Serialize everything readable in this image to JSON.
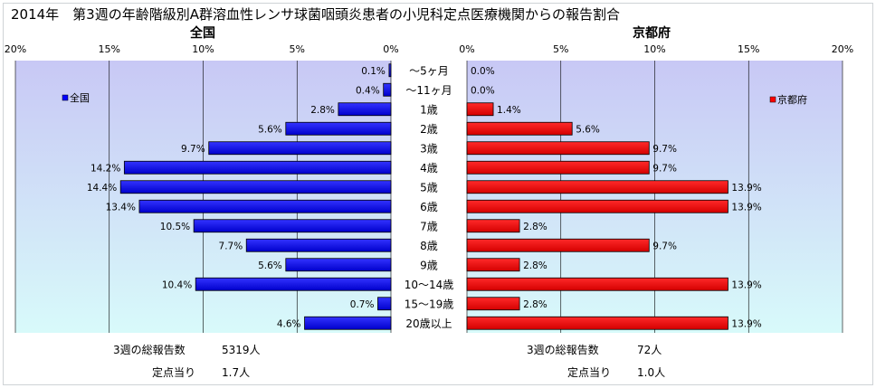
{
  "title": "2014年　第3週の年齢階級別A群溶血性レンサ球菌咽頭炎患者の小児科定点医療機関からの報告割合",
  "colors": {
    "left_bar": "#0000ff",
    "right_bar": "#ff0000",
    "plot_top": "#c8c8f5",
    "plot_bottom": "#d8fafa",
    "grid": "#000000",
    "text": "#000000"
  },
  "chart_data": [
    {
      "type": "bar",
      "orientation": "horizontal",
      "direction": "right-to-left",
      "title": "全国",
      "series": [
        {
          "name": "全国",
          "values": [
            0.1,
            0.4,
            2.8,
            5.6,
            9.7,
            14.2,
            14.4,
            13.4,
            10.5,
            7.7,
            5.6,
            10.4,
            0.7,
            4.6
          ]
        }
      ],
      "value_labels": [
        "0.1%",
        "0.4%",
        "2.8%",
        "5.6%",
        "9.7%",
        "14.2%",
        "14.4%",
        "13.4%",
        "10.5%",
        "7.7%",
        "5.6%",
        "10.4%",
        "0.7%",
        "4.6%"
      ],
      "xlim": [
        0,
        20
      ],
      "xticks": [
        "0%",
        "5%",
        "10%",
        "15%",
        "20%"
      ],
      "grid": true,
      "legend": "top-left",
      "legend_label": "全国"
    },
    {
      "type": "bar",
      "orientation": "horizontal",
      "direction": "left-to-right",
      "title": "京都府",
      "series": [
        {
          "name": "京都府",
          "values": [
            0.0,
            0.0,
            1.4,
            5.6,
            9.7,
            9.7,
            13.9,
            13.9,
            2.8,
            9.7,
            2.8,
            13.9,
            2.8,
            13.9
          ]
        }
      ],
      "value_labels": [
        "0.0%",
        "0.0%",
        "1.4%",
        "5.6%",
        "9.7%",
        "9.7%",
        "13.9%",
        "13.9%",
        "2.8%",
        "9.7%",
        "2.8%",
        "13.9%",
        "2.8%",
        "13.9%"
      ],
      "xlim": [
        0,
        20
      ],
      "xticks": [
        "0%",
        "5%",
        "10%",
        "15%",
        "20%"
      ],
      "grid": true,
      "legend": "top-right",
      "legend_label": "京都府"
    }
  ],
  "categories": [
    "～5ヶ月",
    "～11ヶ月",
    "1歳",
    "2歳",
    "3歳",
    "4歳",
    "5歳",
    "6歳",
    "7歳",
    "8歳",
    "9歳",
    "10～14歳",
    "15～19歳",
    "20歳以上"
  ],
  "footer": {
    "left": [
      {
        "label": "3週の総報告数",
        "value": "5319人"
      },
      {
        "label": "定点当り",
        "value": "1.7人"
      }
    ],
    "right": [
      {
        "label": "3週の総報告数",
        "value": "72人"
      },
      {
        "label": "定点当り",
        "value": "1.0人"
      }
    ]
  }
}
